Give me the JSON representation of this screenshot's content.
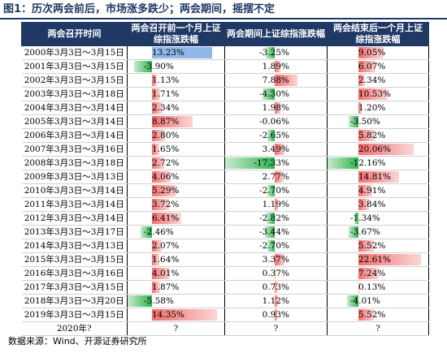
{
  "figure": {
    "title": "图1：历次两会前后，市场涨多跌少；两会期间，摇摆不定",
    "source": "数据来源：Wind、开源证券研究所"
  },
  "table": {
    "headers": [
      "两会召开时间",
      "两会召开前一个月上证综指涨跌幅",
      "两会期间上证综指涨跌幅",
      "两会结束后一个月上证综指涨跌幅"
    ],
    "rows": [
      {
        "date": "2000年3月3日～3月15日",
        "before": "13.23%",
        "during": "-3.25%",
        "after": "9.05%"
      },
      {
        "date": "2001年3月3日～3月15日",
        "before": "-3.90%",
        "during": "1.89%",
        "after": "6.07%"
      },
      {
        "date": "2002年3月3日～3月15日",
        "before": "1.13%",
        "during": "7.88%",
        "after": "2.34%"
      },
      {
        "date": "2003年3月3日～3月18日",
        "before": "1.71%",
        "during": "-4.30%",
        "after": "10.53%"
      },
      {
        "date": "2004年3月3日～3月14日",
        "before": "2.34%",
        "during": "1.98%",
        "after": "1.20%"
      },
      {
        "date": "2005年3月3日～3月14日",
        "before": "8.87%",
        "during": "-0.06%",
        "after": "-3.50%"
      },
      {
        "date": "2006年3月3日～3月14日",
        "before": "2.80%",
        "during": "-2.65%",
        "after": "5.82%"
      },
      {
        "date": "2007年3月3日～3月16日",
        "before": "1.65%",
        "during": "3.49%",
        "after": "20.06%"
      },
      {
        "date": "2008年3月3日～3月18日",
        "before": "2.72%",
        "during": "-17.33%",
        "after": "-12.16%"
      },
      {
        "date": "2009年3月3日～3月13日",
        "before": "4.06%",
        "during": "2.77%",
        "after": "14.81%"
      },
      {
        "date": "2010年3月3日～3月14日",
        "before": "5.29%",
        "during": "-2.70%",
        "after": "4.91%"
      },
      {
        "date": "2011年3月3日～3月14日",
        "before": "3.72%",
        "during": "1.19%",
        "after": "3.84%"
      },
      {
        "date": "2012年3月3日～3月14日",
        "before": "6.41%",
        "during": "-2.82%",
        "after": "-1.34%"
      },
      {
        "date": "2013年3月3日～3月17日",
        "before": "-2.46%",
        "during": "-3.44%",
        "after": "-3.67%"
      },
      {
        "date": "2014年3月3日～3月13日",
        "before": "2.07%",
        "during": "-2.70%",
        "after": "5.52%"
      },
      {
        "date": "2015年3月3日～3月15日",
        "before": "1.64%",
        "during": "3.37%",
        "after": "22.61%"
      },
      {
        "date": "2016年3月3日～3月16日",
        "before": "4.01%",
        "during": "0.37%",
        "after": "7.24%"
      },
      {
        "date": "2017年3月3日～3月15日",
        "before": "1.87%",
        "during": "0.73%",
        "after": "0.13%"
      },
      {
        "date": "2018年3月3日～3月20日",
        "before": "-5.58%",
        "during": "1.12%",
        "after": "-4.01%"
      },
      {
        "date": "2019年3月3日～3月15日",
        "before": "14.35%",
        "during": "0.93%",
        "after": "5.52%"
      },
      {
        "date": "2020年?",
        "before": "?",
        "during": "?",
        "after": "?"
      }
    ]
  },
  "colors": {
    "header_bg": "#1f3864",
    "positive_bar": "#f26d6d",
    "negative_bar": "#2fb34c",
    "highlight_bar": "#8fb8e6"
  }
}
